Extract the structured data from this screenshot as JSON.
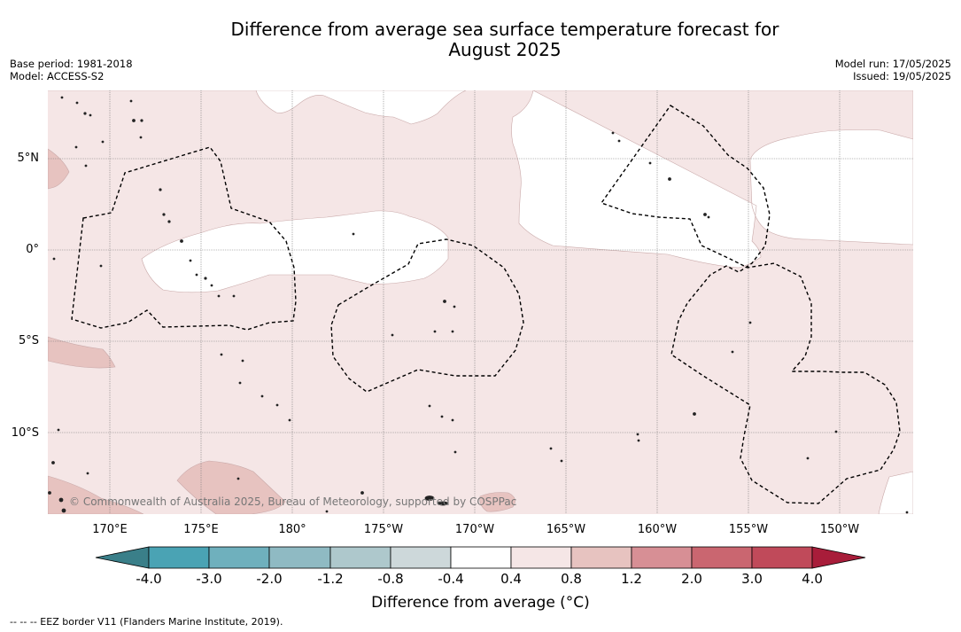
{
  "title_line1": "Difference from average sea surface temperature forecast for",
  "title_line2": "August 2025",
  "base_period": "Base period: 1981-2018",
  "model": "Model: ACCESS-S2",
  "model_run": "Model run: 17/05/2025",
  "issued": "Issued: 19/05/2025",
  "lat_labels": [
    "5°N",
    "0°",
    "5°S",
    "10°S"
  ],
  "lon_labels": [
    "170°E",
    "175°E",
    "180°",
    "175°W",
    "170°W",
    "165°W",
    "160°W",
    "155°W",
    "150°W"
  ],
  "copyright": "© Commonwealth of Australia 2025, Bureau of Meteorology, supported by COSPPac",
  "colorbar": {
    "ticks": [
      "-4.0",
      "-3.0",
      "-2.0",
      "-1.2",
      "-0.8",
      "-0.4",
      "0.4",
      "0.8",
      "1.2",
      "2.0",
      "3.0",
      "4.0"
    ],
    "colors": [
      "#3a7f89",
      "#4aa3b4",
      "#6fb0bd",
      "#8fbac3",
      "#aec8cc",
      "#cdd8da",
      "#ffffff",
      "#f5e6e6",
      "#e7c3c0",
      "#d78f95",
      "#ca6670",
      "#c04a5a",
      "#a81d3a"
    ],
    "label": "Difference from average (°C)"
  },
  "footnote": "-- -- -- EEZ border V11 (Flanders Marine Institute, 2019).",
  "map_colors": {
    "anomaly_0_4_to_0_8": "#f5e6e6",
    "anomaly_0_8_to_1_2": "#e7c3c0",
    "neutral": "#ffffff",
    "eez_border": "#000000"
  }
}
